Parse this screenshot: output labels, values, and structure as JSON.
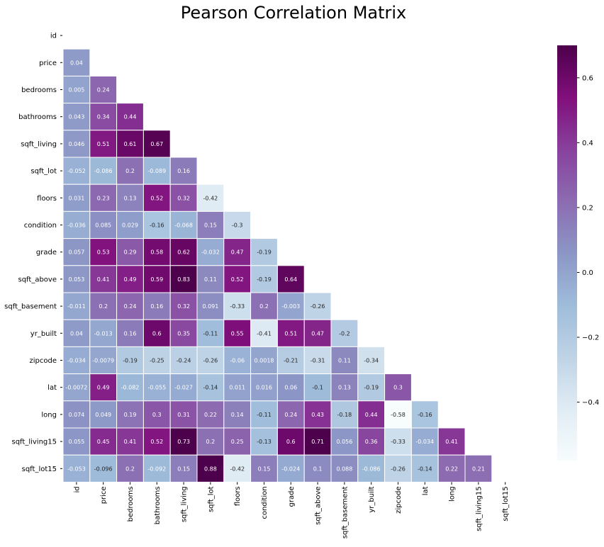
{
  "chart_data": {
    "type": "heatmap",
    "title": "Pearson Correlation Matrix",
    "variables": [
      "id",
      "price",
      "bedrooms",
      "bathrooms",
      "sqft_living",
      "sqft_lot",
      "floors",
      "condition",
      "grade",
      "sqft_above",
      "sqft_basement",
      "yr_built",
      "zipcode",
      "lat",
      "long",
      "sqft_living15",
      "sqft_lot15"
    ],
    "mask": "upper-triangle-including-diagonal",
    "lower_triangle_rows": [
      [],
      [
        "0.04"
      ],
      [
        "0.005",
        "0.24"
      ],
      [
        "0.043",
        "0.34",
        "0.44"
      ],
      [
        "0.046",
        "0.51",
        "0.61",
        "0.67"
      ],
      [
        "-0.052",
        "-0.086",
        "0.2",
        "-0.089",
        "0.16"
      ],
      [
        "0.031",
        "0.23",
        "0.13",
        "0.52",
        "0.32",
        "-0.42"
      ],
      [
        "-0.036",
        "0.085",
        "0.029",
        "-0.16",
        "-0.068",
        "0.15",
        "-0.3"
      ],
      [
        "0.057",
        "0.53",
        "0.29",
        "0.58",
        "0.62",
        "-0.032",
        "0.47",
        "-0.19"
      ],
      [
        "0.053",
        "0.41",
        "0.49",
        "0.59",
        "0.83",
        "0.11",
        "0.52",
        "-0.19",
        "0.64"
      ],
      [
        "-0.011",
        "0.2",
        "0.24",
        "0.16",
        "0.32",
        "0.091",
        "-0.33",
        "0.2",
        "-0.003",
        "-0.26"
      ],
      [
        "0.04",
        "-0.013",
        "0.16",
        "0.6",
        "0.35",
        "-0.11",
        "0.55",
        "-0.41",
        "0.51",
        "0.47",
        "-0.2"
      ],
      [
        "-0.034",
        "-0.0079",
        "-0.19",
        "-0.25",
        "-0.24",
        "-0.26",
        "-0.06",
        "0.0018",
        "-0.21",
        "-0.31",
        "0.11",
        "-0.34"
      ],
      [
        "-0.0072",
        "0.49",
        "-0.082",
        "-0.055",
        "-0.027",
        "-0.14",
        "0.011",
        "0.016",
        "0.06",
        "-0.1",
        "0.13",
        "-0.19",
        "0.3"
      ],
      [
        "0.074",
        "0.049",
        "0.19",
        "0.3",
        "0.31",
        "0.22",
        "0.14",
        "-0.11",
        "0.24",
        "0.43",
        "-0.18",
        "0.44",
        "-0.58",
        "-0.16"
      ],
      [
        "0.055",
        "0.45",
        "0.41",
        "0.52",
        "0.73",
        "0.2",
        "0.25",
        "-0.13",
        "0.6",
        "0.71",
        "0.056",
        "0.36",
        "-0.33",
        "-0.034",
        "0.41"
      ],
      [
        "-0.053",
        "-0.096",
        "0.2",
        "-0.092",
        "0.15",
        "0.88",
        "-0.42",
        "0.15",
        "-0.024",
        "0.1",
        "0.088",
        "-0.086",
        "-0.26",
        "-0.14",
        "0.22",
        "0.21"
      ]
    ],
    "colorbar": {
      "colormap": "BuPu",
      "vmin": -0.58,
      "vmax": 0.7,
      "ticks": [
        "0.6",
        "0.4",
        "0.2",
        "0.0",
        "−0.2",
        "−0.4"
      ],
      "tick_values": [
        0.6,
        0.4,
        0.2,
        0.0,
        -0.2,
        -0.4
      ]
    },
    "colors": {
      "cell_border": "#ffffff",
      "text_light": "#ffffff",
      "text_dark": "#262626"
    }
  }
}
